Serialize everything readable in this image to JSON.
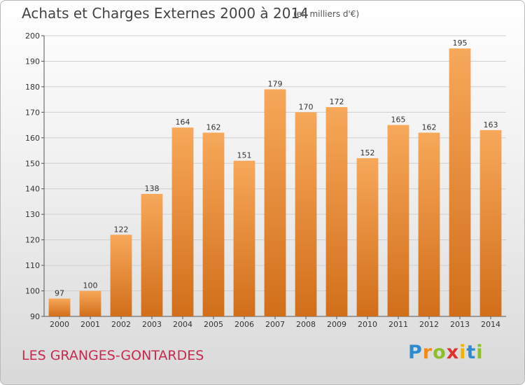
{
  "header": {
    "title": "Achats et Charges Externes 2000 à 2014",
    "subtitle": "(en milliers d'€)"
  },
  "footer": {
    "commune": "LES GRANGES-GONTARDES",
    "brand": {
      "letters": [
        "P",
        "r",
        "o",
        "x",
        "i",
        "t",
        "i"
      ],
      "colors": [
        "#2e8bd0",
        "#f08a1c",
        "#8cbf2a",
        "#e03030",
        "#f0b400",
        "#2e8bd0",
        "#8cbf2a"
      ]
    }
  },
  "chart_data": {
    "type": "bar",
    "categories": [
      "2000",
      "2001",
      "2002",
      "2003",
      "2004",
      "2005",
      "2006",
      "2007",
      "2008",
      "2009",
      "2010",
      "2011",
      "2012",
      "2013",
      "2014"
    ],
    "values": [
      97,
      100,
      122,
      138,
      164,
      162,
      151,
      179,
      170,
      172,
      152,
      165,
      162,
      195,
      163
    ],
    "ylim": [
      90,
      200
    ],
    "yticks": [
      90,
      100,
      110,
      120,
      130,
      140,
      150,
      160,
      170,
      180,
      190,
      200
    ],
    "grid": true,
    "bar_color_top": "#f7a85a",
    "bar_color_bottom": "#d16e1a",
    "xlabel": "",
    "ylabel": ""
  }
}
